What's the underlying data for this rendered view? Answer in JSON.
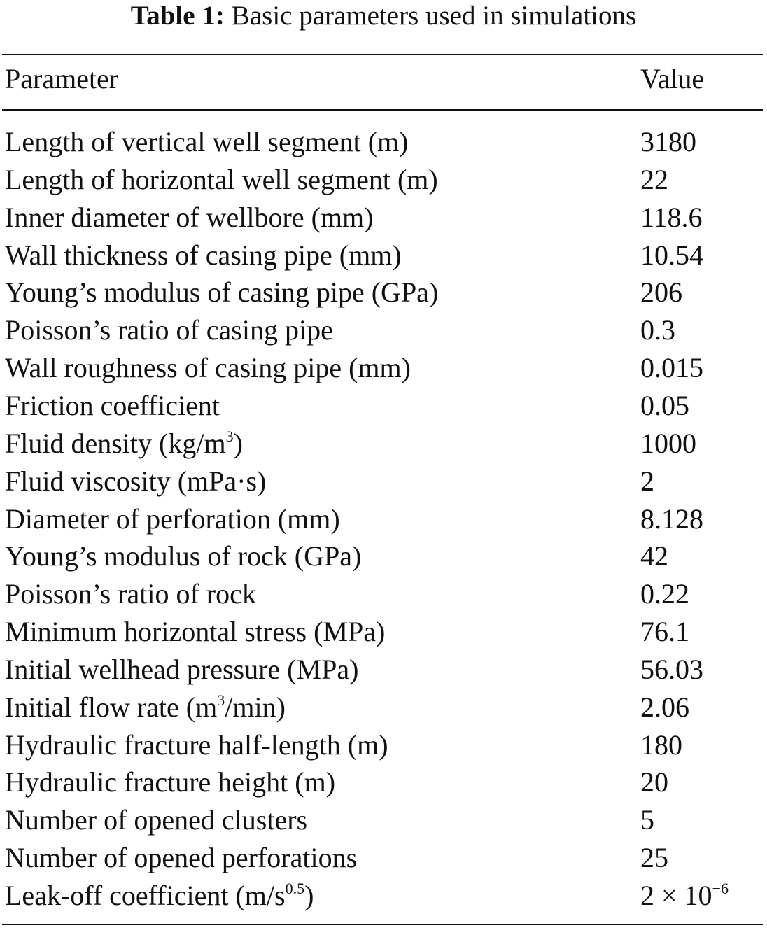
{
  "table": {
    "caption_label": "Table 1:",
    "caption_text": "Basic parameters used in simulations",
    "headers": [
      "Parameter",
      "Value"
    ],
    "rows": [
      {
        "param": "Length of vertical well segment (m)",
        "value": "3180"
      },
      {
        "param": "Length of horizontal well segment (m)",
        "value": "22"
      },
      {
        "param": "Inner diameter of wellbore (mm)",
        "value": "118.6"
      },
      {
        "param": "Wall thickness of casing pipe (mm)",
        "value": "10.54"
      },
      {
        "param": "Young’s modulus of casing pipe (GPa)",
        "value": "206"
      },
      {
        "param": "Poisson’s ratio of casing pipe",
        "value": "0.3"
      },
      {
        "param": "Wall roughness of casing pipe (mm)",
        "value": "0.015"
      },
      {
        "param": "Friction coefficient",
        "value": "0.05"
      },
      {
        "param": "Fluid density (kg/m",
        "param_sup": "3",
        "param_tail": ")",
        "value": "1000"
      },
      {
        "param": "Fluid viscosity (mPa·s)",
        "value": "2"
      },
      {
        "param": "Diameter of perforation (mm)",
        "value": "8.128"
      },
      {
        "param": "Young’s modulus of rock (GPa)",
        "value": "42"
      },
      {
        "param": "Poisson’s ratio of rock",
        "value": "0.22"
      },
      {
        "param": "Minimum horizontal stress (MPa)",
        "value": "76.1"
      },
      {
        "param": "Initial wellhead pressure (MPa)",
        "value": "56.03"
      },
      {
        "param": "Initial flow rate (m",
        "param_sup": "3",
        "param_tail": "/min)",
        "value": "2.06"
      },
      {
        "param": "Hydraulic fracture half-length (m)",
        "value": "180"
      },
      {
        "param": "Hydraulic fracture height (m)",
        "value": "20"
      },
      {
        "param": "Number of opened clusters",
        "value": "5"
      },
      {
        "param": "Number of opened perforations",
        "value": "25"
      },
      {
        "param": "Leak-off coefficient (m/s",
        "param_sup": "0.5",
        "param_tail": ")",
        "value": "2 × 10",
        "value_sup": "−6"
      }
    ]
  }
}
